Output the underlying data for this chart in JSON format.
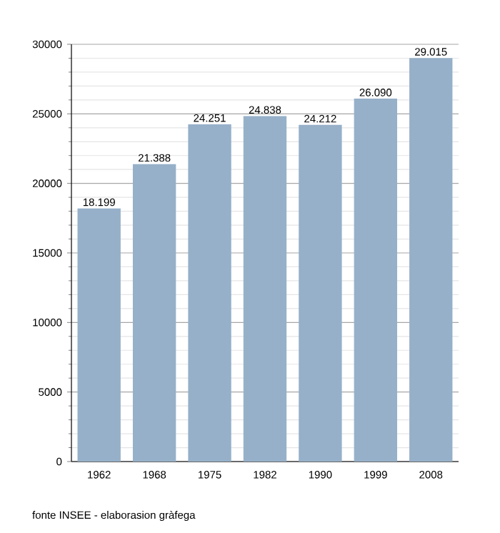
{
  "chart_data": {
    "type": "bar",
    "categories": [
      "1962",
      "1968",
      "1975",
      "1982",
      "1990",
      "1999",
      "2008"
    ],
    "values": [
      18199,
      21388,
      24251,
      24838,
      24212,
      26090,
      29015
    ],
    "value_labels": [
      "18.199",
      "21.388",
      "24.251",
      "24.838",
      "24.212",
      "26.090",
      "29.015"
    ],
    "color": "#96b0c9",
    "ylim": [
      0,
      30000
    ],
    "yticks": [
      0,
      5000,
      10000,
      15000,
      20000,
      25000,
      30000
    ],
    "grid": "y",
    "annotations": [
      "fonte INSEE - elaborasion gràfega"
    ]
  }
}
